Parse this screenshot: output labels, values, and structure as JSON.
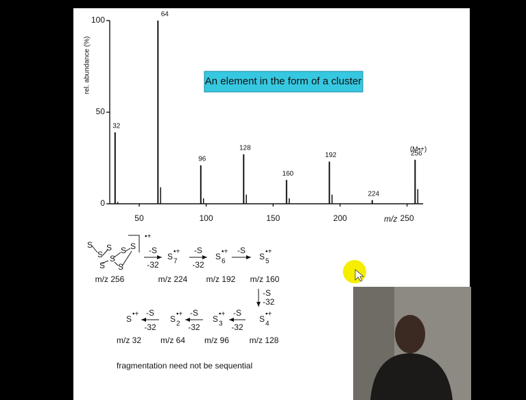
{
  "chart_data": {
    "type": "stem",
    "title": "An element in the form of a cluster",
    "x_label": "m/z",
    "y_label": "rel. abundance (%)",
    "x": [
      32,
      64,
      96,
      128,
      160,
      192,
      224,
      256
    ],
    "values": [
      39,
      100,
      21,
      27,
      13,
      23,
      2,
      24
    ],
    "minor_x": [
      34,
      66,
      98,
      130,
      162,
      194,
      258
    ],
    "minor_values": [
      1,
      9,
      3,
      5,
      3,
      5,
      8
    ],
    "molecular_ion_note": "(M•+)",
    "color": "#111111",
    "xlim": [
      28,
      262
    ],
    "ylim": [
      0,
      100
    ],
    "xticks": [
      50,
      100,
      150,
      200,
      250
    ],
    "yticks": [
      0,
      50,
      100
    ]
  },
  "scheme": {
    "ring_atoms": [
      "S",
      "S",
      "S",
      "S",
      "S",
      "S",
      "S",
      "S"
    ],
    "ring_charge": "•+",
    "ions": [
      {
        "base": "S",
        "sub": "7",
        "charge": "•+"
      },
      {
        "base": "S",
        "sub": "6",
        "charge": "•+"
      },
      {
        "base": "S",
        "sub": "5",
        "charge": "•+"
      },
      {
        "base": "S",
        "sub": "4",
        "charge": "•+"
      },
      {
        "base": "S",
        "sub": "3",
        "charge": "•+"
      },
      {
        "base": "S",
        "sub": "2",
        "charge": "•+"
      },
      {
        "base": "S",
        "charge": "•+"
      }
    ],
    "mz_labels": [
      "m/z 256",
      "m/z 224",
      "m/z 192",
      "m/z 160",
      "m/z 128",
      "m/z 96",
      "m/z 64",
      "m/z 32"
    ],
    "steps": [
      {
        "loss": "-S",
        "mass": "-32"
      },
      {
        "loss": "-S",
        "mass": "-32"
      },
      {
        "loss": "-S"
      },
      {
        "loss": "-S",
        "mass": "-32"
      },
      {
        "loss": "-S",
        "mass": "-32"
      },
      {
        "loss": "-S",
        "mass": "-32"
      },
      {
        "loss": "-S",
        "mass": "-32"
      }
    ],
    "note": "fragmentation need not be sequential"
  }
}
